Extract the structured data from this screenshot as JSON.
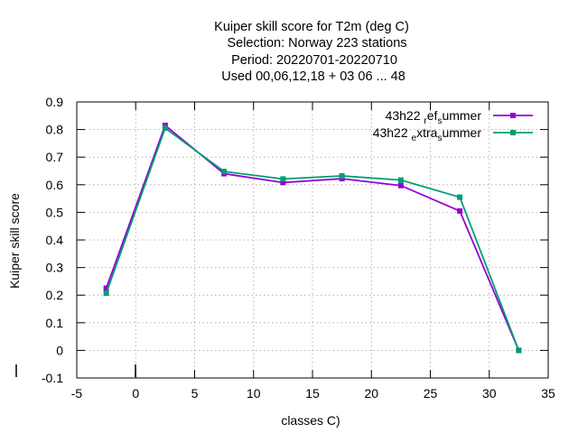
{
  "chart_data": {
    "type": "line",
    "title_lines": [
      "Kuiper skill score  for T2m (deg C)",
      "Selection: Norway    223 stations",
      "Period: 20220701-20220710",
      "Used  00,06,12,18  + 03 06 ... 48"
    ],
    "xlabel": "classes C)",
    "ylabel": "Kuiper skill score",
    "xlim": [
      -5,
      35
    ],
    "ylim": [
      -0.1,
      0.9
    ],
    "xticks": [
      -5,
      0,
      5,
      10,
      15,
      20,
      25,
      30,
      35
    ],
    "yticks": [
      -0.1,
      0,
      0.1,
      0.2,
      0.3,
      0.4,
      0.5,
      0.6,
      0.7,
      0.8,
      0.9
    ],
    "xtick_labels": [
      "-5",
      "0",
      "5",
      "10",
      "15",
      "20",
      "25",
      "30",
      "35"
    ],
    "ytick_labels": [
      "-0.1",
      "0",
      "0.1",
      "0.2",
      "0.3",
      "0.4",
      "0.5",
      "0.6",
      "0.7",
      "0.8",
      "0.9"
    ],
    "grid": true,
    "legend_position": "top-right",
    "x": [
      -2.5,
      2.5,
      7.5,
      12.5,
      17.5,
      22.5,
      27.5,
      32.5
    ],
    "series": [
      {
        "legend": {
          "main": "43h22 ",
          "sub1": "r",
          "mid": "ef",
          "sub2": "s",
          "tail": "ummer"
        },
        "color": "#9400d3",
        "values": [
          0.225,
          0.815,
          0.64,
          0.608,
          0.622,
          0.597,
          0.505,
          0.0
        ]
      },
      {
        "legend": {
          "main": "43h22 ",
          "sub1": "e",
          "mid": "xtra",
          "sub2": "s",
          "tail": "ummer"
        },
        "color": "#009e73",
        "values": [
          0.207,
          0.805,
          0.648,
          0.621,
          0.632,
          0.617,
          0.555,
          0.0
        ]
      }
    ]
  }
}
